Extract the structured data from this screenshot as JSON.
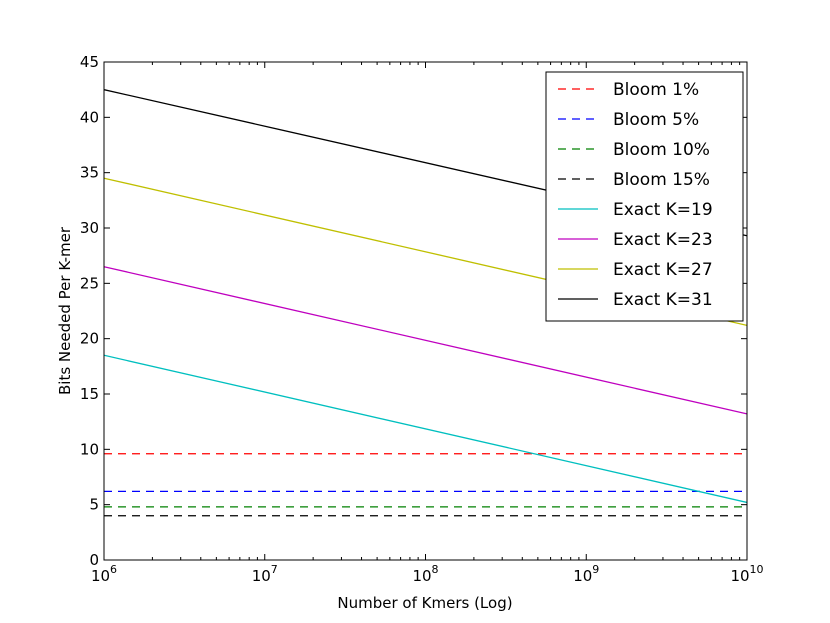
{
  "chart_data": {
    "type": "line",
    "title": "",
    "xlabel": "Number of Kmers (Log)",
    "ylabel": "Bits Needed Per K-mer",
    "xscale": "log",
    "xlim_exp": [
      6,
      10
    ],
    "ylim": [
      0,
      45
    ],
    "x_ticks": [
      {
        "base": "10",
        "exp": "6"
      },
      {
        "base": "10",
        "exp": "7"
      },
      {
        "base": "10",
        "exp": "8"
      },
      {
        "base": "10",
        "exp": "9"
      },
      {
        "base": "10",
        "exp": "10"
      }
    ],
    "y_ticks": [
      "0",
      "5",
      "10",
      "15",
      "20",
      "25",
      "30",
      "35",
      "40",
      "45"
    ],
    "legend_position": "top-right",
    "series": [
      {
        "name": "Bloom 1%",
        "style": "dashed",
        "color": "#ff0000",
        "x_exp": [
          6,
          10
        ],
        "values": [
          9.6,
          9.6
        ]
      },
      {
        "name": "Bloom 5%",
        "style": "dashed",
        "color": "#0000ff",
        "x_exp": [
          6,
          10
        ],
        "values": [
          6.2,
          6.2
        ]
      },
      {
        "name": "Bloom 10%",
        "style": "dashed",
        "color": "#008000",
        "x_exp": [
          6,
          10
        ],
        "values": [
          4.8,
          4.8
        ]
      },
      {
        "name": "Bloom 15%",
        "style": "dashed",
        "color": "#000000",
        "x_exp": [
          6,
          10
        ],
        "values": [
          4.0,
          4.0
        ]
      },
      {
        "name": "Exact K=19",
        "style": "solid",
        "color": "#00bfbf",
        "x_exp": [
          6,
          10
        ],
        "values": [
          18.5,
          5.2
        ]
      },
      {
        "name": "Exact K=23",
        "style": "solid",
        "color": "#bf00bf",
        "x_exp": [
          6,
          10
        ],
        "values": [
          26.5,
          13.2
        ]
      },
      {
        "name": "Exact K=27",
        "style": "solid",
        "color": "#bfbf00",
        "x_exp": [
          6,
          10
        ],
        "values": [
          34.5,
          21.2
        ]
      },
      {
        "name": "Exact K=31",
        "style": "solid",
        "color": "#000000",
        "x_exp": [
          6,
          10
        ],
        "values": [
          42.5,
          29.3
        ]
      }
    ]
  }
}
